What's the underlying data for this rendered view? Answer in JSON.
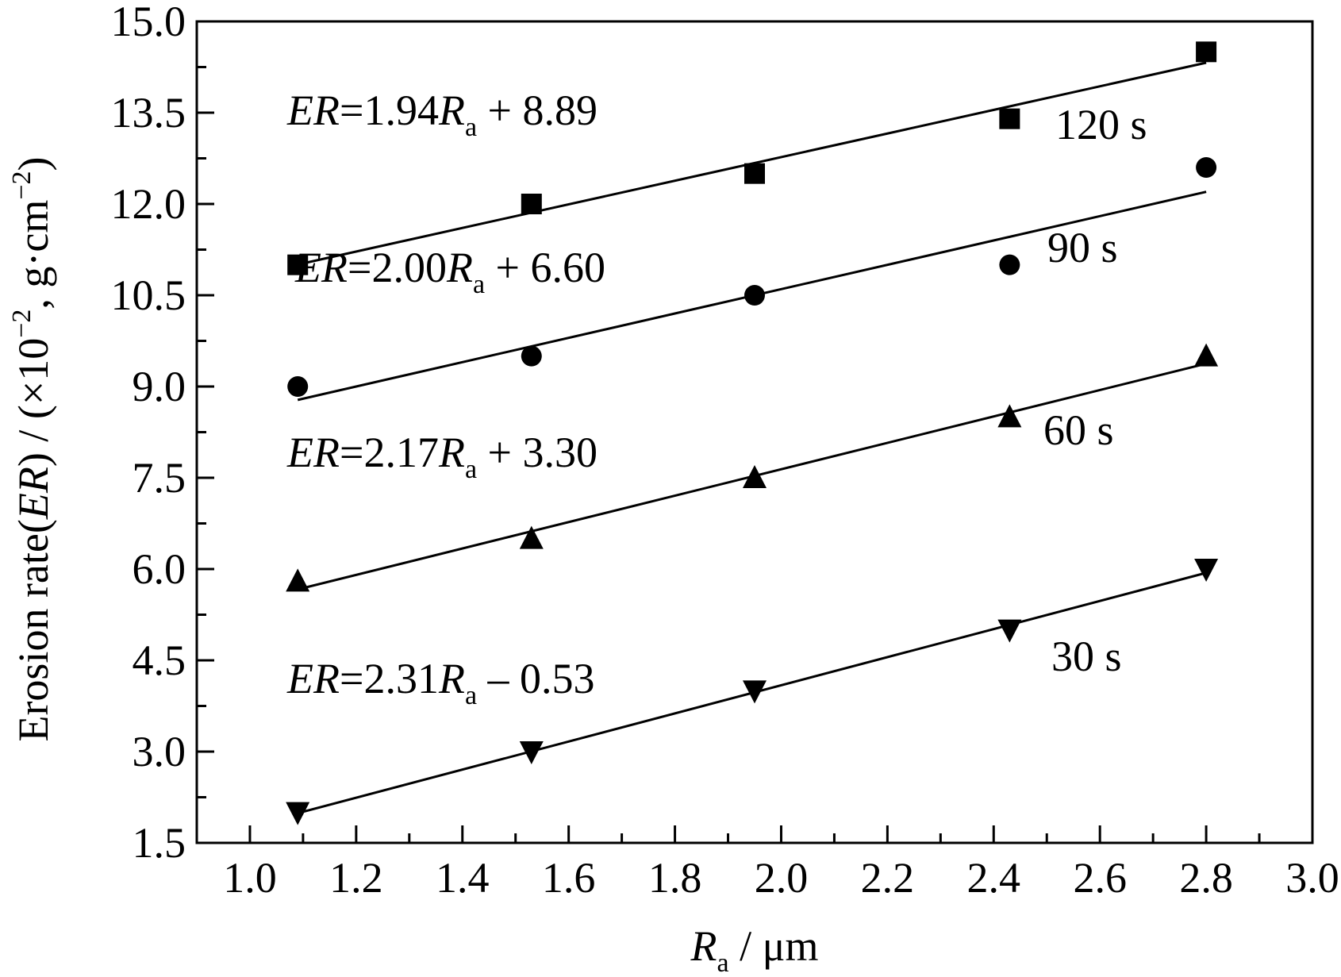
{
  "chart_data": {
    "type": "scatter",
    "x_label": [
      {
        "text": "R",
        "italic": true
      },
      {
        "text": "a",
        "sub": true
      },
      {
        "text": " / μm"
      }
    ],
    "y_label": [
      {
        "text": "Erosion rate("
      },
      {
        "text": "ER",
        "italic": true
      },
      {
        "text": ") / (×10"
      },
      {
        "text": "−2",
        "sup": true
      },
      {
        "text": ", g·cm"
      },
      {
        "text": "−2",
        "sup": true
      },
      {
        "text": ")"
      }
    ],
    "x": [
      1.09,
      1.53,
      1.95,
      2.43,
      2.8
    ],
    "xlim": [
      0.9,
      3.0
    ],
    "xticks": [
      {
        "value": 1.0,
        "label": "1.0"
      },
      1.2,
      1.4,
      1.6,
      1.8,
      {
        "value": 2.0,
        "label": "2.0"
      },
      2.2,
      2.4,
      2.6,
      2.8,
      {
        "value": 3.0,
        "label": "3.0"
      }
    ],
    "xminorticks": [
      1.1,
      1.3,
      1.5,
      1.7,
      1.9,
      2.1,
      2.3,
      2.5,
      2.7,
      2.9
    ],
    "ylim": [
      1.5,
      15.0
    ],
    "yticks": [
      1.5,
      {
        "value": 3.0,
        "label": "3.0"
      },
      4.5,
      {
        "value": 6.0,
        "label": "6.0"
      },
      7.5,
      {
        "value": 9.0,
        "label": "9.0"
      },
      10.5,
      {
        "value": 12.0,
        "label": "12.0"
      },
      13.5,
      {
        "value": 15.0,
        "label": "15.0"
      }
    ],
    "yminorticks": [
      2.25,
      3.75,
      5.25,
      6.75,
      8.25,
      9.75,
      11.25,
      12.75,
      14.25
    ],
    "series": [
      {
        "name": "120 s",
        "marker": "square",
        "color": "#000000",
        "values": [
          11.0,
          12.0,
          12.5,
          13.4,
          14.5
        ],
        "fit": {
          "slope": 1.94,
          "intercept": 8.89
        },
        "fit_label": [
          {
            "text": "ER",
            "italic": true
          },
          {
            "text": "=1.94"
          },
          {
            "text": "R",
            "italic": true
          },
          {
            "text": "a",
            "sub": true
          },
          {
            "text": " + 8.89"
          }
        ]
      },
      {
        "name": "90 s",
        "marker": "circle",
        "color": "#000000",
        "values": [
          9.0,
          9.5,
          10.5,
          11.0,
          12.6
        ],
        "fit": {
          "slope": 2.0,
          "intercept": 6.6
        },
        "fit_label": [
          {
            "text": "ER",
            "italic": true
          },
          {
            "text": "=2.00"
          },
          {
            "text": "R",
            "italic": true
          },
          {
            "text": "a",
            "sub": true
          },
          {
            "text": " + 6.60"
          }
        ]
      },
      {
        "name": "60 s",
        "marker": "triangle-up",
        "color": "#000000",
        "values": [
          5.8,
          6.5,
          7.5,
          8.5,
          9.5
        ],
        "fit": {
          "slope": 2.17,
          "intercept": 3.3
        },
        "fit_label": [
          {
            "text": "ER",
            "italic": true
          },
          {
            "text": "=2.17"
          },
          {
            "text": "R",
            "italic": true
          },
          {
            "text": "a",
            "sub": true
          },
          {
            "text": " + 3.30"
          }
        ]
      },
      {
        "name": "30 s",
        "marker": "triangle-down",
        "color": "#000000",
        "values": [
          2.0,
          3.0,
          4.0,
          5.0,
          6.0
        ],
        "fit": {
          "slope": 2.31,
          "intercept": -0.53
        },
        "fit_label": [
          {
            "text": "ER",
            "italic": true
          },
          {
            "text": "=2.31"
          },
          {
            "text": "R",
            "italic": true
          },
          {
            "text": "a",
            "sub": true
          },
          {
            "text": " – 0.53"
          }
        ]
      }
    ]
  }
}
